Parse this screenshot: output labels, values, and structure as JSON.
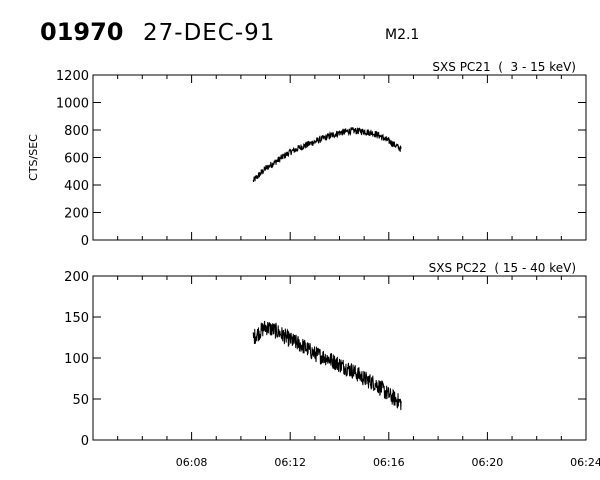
{
  "header": {
    "event_id": "01970",
    "date": "27-DEC-91",
    "flare_class": "M2.1"
  },
  "colors": {
    "background": "#ffffff",
    "ink": "#000000"
  },
  "chart_data": [
    {
      "type": "line",
      "title": "SXS PC21  (  3 - 15 keV)",
      "ylabel": "CTS/SEC",
      "xlabel": "",
      "ylim": [
        0,
        1200
      ],
      "yticks": [
        0,
        200,
        400,
        600,
        800,
        1000,
        1200
      ],
      "ytick_labels": [
        "0",
        "200",
        "400",
        "600",
        "800",
        "1000",
        "1200"
      ],
      "xlim": [
        "06:04",
        "06:24"
      ],
      "x_minor_step_min": 1,
      "show_x_tick_labels": false,
      "series": [
        {
          "x": [
            "06:10:30",
            "06:11:00",
            "06:11:30",
            "06:12:00",
            "06:12:30",
            "06:13:00",
            "06:13:30",
            "06:14:00",
            "06:14:30",
            "06:15:00",
            "06:15:30",
            "06:16:00",
            "06:16:30"
          ],
          "values": [
            430,
            520,
            580,
            640,
            680,
            715,
            750,
            780,
            795,
            790,
            770,
            720,
            660
          ],
          "noise": 25
        }
      ]
    },
    {
      "type": "line",
      "title": "SXS PC22  ( 15 - 40 keV)",
      "ylabel": "",
      "xlabel": "",
      "ylim": [
        0,
        200
      ],
      "yticks": [
        0,
        50,
        100,
        150,
        200
      ],
      "ytick_labels": [
        "0",
        "50",
        "100",
        "150",
        "200"
      ],
      "xlim": [
        "06:04",
        "06:24"
      ],
      "x_minor_step_min": 1,
      "show_x_tick_labels": true,
      "xticks": [
        "06:08",
        "06:12",
        "06:16",
        "06:20",
        "06:24"
      ],
      "series": [
        {
          "x": [
            "06:10:30",
            "06:11:00",
            "06:11:30",
            "06:12:00",
            "06:12:30",
            "06:13:00",
            "06:13:30",
            "06:14:00",
            "06:14:30",
            "06:15:00",
            "06:15:30",
            "06:16:00",
            "06:16:30"
          ],
          "values": [
            125,
            138,
            132,
            122,
            115,
            105,
            100,
            92,
            85,
            75,
            68,
            55,
            45
          ],
          "noise": 10
        }
      ]
    }
  ]
}
